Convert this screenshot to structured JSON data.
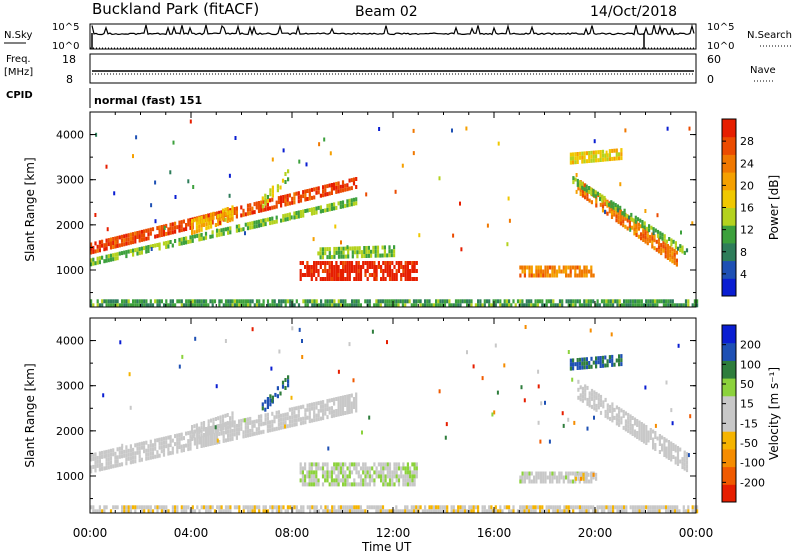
{
  "header": {
    "station": "Buckland Park (fitACF)",
    "beam": "Beam 02",
    "date": "14/Oct/2018"
  },
  "strip": {
    "nsky_label": "N.Sky",
    "nsearch_label": "N.Search",
    "noise_ticks": [
      "10^5",
      "10^0"
    ],
    "freq_label": "Freq.",
    "freq_unit": "[MHz]",
    "freq_ticks": [
      "18",
      "8"
    ],
    "nave_label": "Nave",
    "nave_ticks": [
      "60",
      "0"
    ],
    "cpid_label": "CPID",
    "cpid_text": "normal (fast) 151"
  },
  "colors": {
    "power": [
      "#0a1ed2",
      "#1e50b4",
      "#2e7d5a",
      "#3ca03c",
      "#b4d21e",
      "#f0c800",
      "#f5a000",
      "#f07800",
      "#eb4b00",
      "#e61e00"
    ],
    "velocity": [
      "#e61e00",
      "#f05a00",
      "#f58c00",
      "#f5b400",
      "#c8c8c8",
      "#c8c8c8",
      "#8cd23c",
      "#2e7d3c",
      "#1e50b4",
      "#0a1ed2"
    ]
  },
  "chart_data": [
    {
      "type": "heatmap",
      "name": "power",
      "xlabel": "Time UT",
      "ylabel": "Slant Range [km]",
      "colorbar_label": "Power [dB]",
      "colorbar_ticks": [
        "4",
        "8",
        "12",
        "16",
        "20",
        "24",
        "28"
      ],
      "xlim": [
        0,
        24
      ],
      "ylim": [
        180,
        4500
      ],
      "x_ticks": [
        "00:00",
        "04:00",
        "08:00",
        "12:00",
        "16:00",
        "20:00",
        "00:00"
      ],
      "y_ticks": [
        "1000",
        "2000",
        "3000",
        "4000"
      ],
      "color_range": [
        0,
        30
      ],
      "regions": [
        {
          "t": [
            0.0,
            10.5
          ],
          "r_start": [
            1350,
            2800
          ],
          "width": 260,
          "value": 26
        },
        {
          "t": [
            0.0,
            10.5
          ],
          "r_start": [
            1100,
            2450
          ],
          "width": 160,
          "value": 12
        },
        {
          "t": [
            4.0,
            5.6
          ],
          "r_start": [
            1750,
            2050
          ],
          "width": 380,
          "value": 18
        },
        {
          "t": [
            6.8,
            7.8
          ],
          "r_start": [
            2350,
            2950
          ],
          "width": 280,
          "value": 14
        },
        {
          "t": [
            8.3,
            12.9
          ],
          "r_start": [
            800,
            800
          ],
          "width": 400,
          "value": 29
        },
        {
          "t": [
            9.0,
            12.0
          ],
          "r_start": [
            1250,
            1300
          ],
          "width": 250,
          "value": 12
        },
        {
          "t": [
            17.0,
            19.9
          ],
          "r_start": [
            800,
            800
          ],
          "width": 300,
          "value": 22
        },
        {
          "t": [
            19.3,
            23.2
          ],
          "r_start": [
            2700,
            1100
          ],
          "width": 330,
          "value": 23
        },
        {
          "t": [
            19.1,
            23.6
          ],
          "r_start": [
            2900,
            1300
          ],
          "width": 180,
          "value": 11
        },
        {
          "t": [
            19.0,
            21.0
          ],
          "r_start": [
            3300,
            3400
          ],
          "width": 300,
          "value": 16
        },
        {
          "t": [
            0.0,
            24.0
          ],
          "r_start": [
            190,
            190
          ],
          "width": 160,
          "value": 10
        }
      ]
    },
    {
      "type": "heatmap",
      "name": "velocity",
      "xlabel": "Time UT",
      "ylabel": "Slant Range [km]",
      "colorbar_label": "Velocity [m s⁻¹]",
      "colorbar_ticks": [
        "200",
        "100",
        "50",
        "15",
        "-15",
        "-50",
        "-100",
        "-200"
      ],
      "xlim": [
        0,
        24
      ],
      "ylim": [
        180,
        4500
      ],
      "x_ticks": [
        "00:00",
        "04:00",
        "08:00",
        "12:00",
        "16:00",
        "20:00",
        "00:00"
      ],
      "y_ticks": [
        "1000",
        "2000",
        "3000",
        "4000"
      ],
      "color_range": [
        -250,
        250
      ],
      "regions": [
        {
          "t": [
            0.0,
            10.5
          ],
          "r_start": [
            1100,
            2450
          ],
          "width": 400,
          "value": 0
        },
        {
          "t": [
            4.0,
            5.6
          ],
          "r_start": [
            1750,
            2050
          ],
          "width": 380,
          "value": 0
        },
        {
          "t": [
            6.8,
            7.8
          ],
          "r_start": [
            2350,
            2950
          ],
          "width": 280,
          "value": 150
        },
        {
          "t": [
            8.3,
            12.9
          ],
          "r_start": [
            800,
            800
          ],
          "width": 500,
          "value": 40
        },
        {
          "t": [
            17.0,
            19.9
          ],
          "r_start": [
            800,
            800
          ],
          "width": 300,
          "value": 10
        },
        {
          "t": [
            19.2,
            20.0
          ],
          "r_start": [
            850,
            850
          ],
          "width": 220,
          "value": -60
        },
        {
          "t": [
            19.3,
            23.6
          ],
          "r_start": [
            2700,
            1100
          ],
          "width": 430,
          "value": 0
        },
        {
          "t": [
            19.0,
            21.0
          ],
          "r_start": [
            3300,
            3400
          ],
          "width": 300,
          "value": 150
        },
        {
          "t": [
            0.0,
            24.0
          ],
          "r_start": [
            190,
            190
          ],
          "width": 160,
          "value": -30
        }
      ]
    }
  ]
}
